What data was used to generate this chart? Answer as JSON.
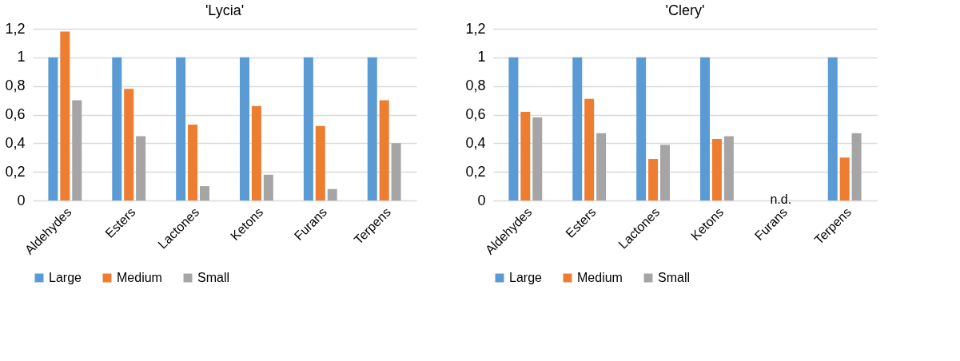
{
  "chart_data": [
    {
      "type": "bar",
      "title": "'Lycia'",
      "categories": [
        "Aldehydes",
        "Esters",
        "Lactones",
        "Ketons",
        "Furans",
        "Terpens"
      ],
      "series": [
        {
          "name": "Large",
          "color": "#5b9bd5",
          "values": [
            1,
            1,
            1,
            1,
            1,
            1
          ]
        },
        {
          "name": "Medium",
          "color": "#ed7d31",
          "values": [
            1.18,
            0.78,
            0.53,
            0.66,
            0.52,
            0.7
          ]
        },
        {
          "name": "Small",
          "color": "#a5a5a5",
          "values": [
            0.7,
            0.45,
            0.1,
            0.18,
            0.08,
            0.4
          ]
        }
      ],
      "ylim": [
        0,
        1.2
      ],
      "yticks": [
        {
          "value": 0,
          "label": "0"
        },
        {
          "value": 0.2,
          "label": "0,2"
        },
        {
          "value": 0.4,
          "label": "0,4"
        },
        {
          "value": 0.6,
          "label": "0,6"
        },
        {
          "value": 0.8,
          "label": "0,8"
        },
        {
          "value": 1,
          "label": "1"
        },
        {
          "value": 1.2,
          "label": "1,2"
        }
      ],
      "grid": "y",
      "legend": "bottom"
    },
    {
      "type": "bar",
      "title": "'Clery'",
      "categories": [
        "Aldehydes",
        "Esters",
        "Lactones",
        "Ketons",
        "Furans",
        "Terpens"
      ],
      "series": [
        {
          "name": "Large",
          "color": "#5b9bd5",
          "values": [
            1,
            1,
            1,
            1,
            null,
            1
          ]
        },
        {
          "name": "Medium",
          "color": "#ed7d31",
          "values": [
            0.62,
            0.71,
            0.29,
            0.43,
            null,
            0.3
          ]
        },
        {
          "name": "Small",
          "color": "#a5a5a5",
          "values": [
            0.58,
            0.47,
            0.39,
            0.45,
            null,
            0.47
          ]
        }
      ],
      "ylim": [
        0,
        1.2
      ],
      "yticks": [
        {
          "value": 0,
          "label": "0"
        },
        {
          "value": 0.2,
          "label": "0,2"
        },
        {
          "value": 0.4,
          "label": "0,4"
        },
        {
          "value": 0.6,
          "label": "0,6"
        },
        {
          "value": 0.8,
          "label": "0,8"
        },
        {
          "value": 1,
          "label": "1"
        },
        {
          "value": 1.2,
          "label": "1,2"
        }
      ],
      "grid": "y",
      "legend": "bottom",
      "annotations": [
        "n.d."
      ]
    }
  ]
}
